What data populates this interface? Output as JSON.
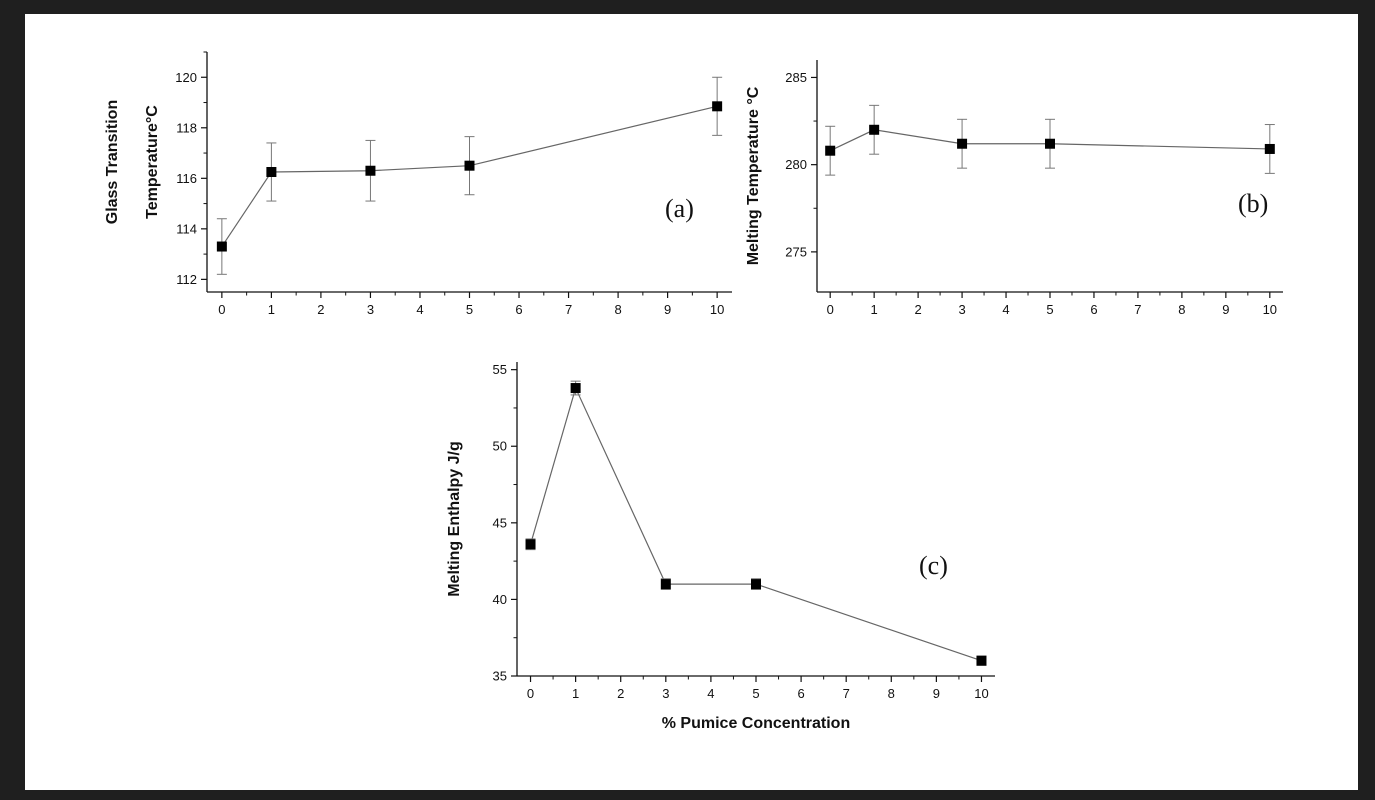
{
  "chart_data": [
    {
      "type": "line",
      "panel_label": "(a)",
      "ylabel": [
        "Glass Transition",
        "Temperature°C"
      ],
      "xlabel": "",
      "xlim": [
        -0.3,
        10.3
      ],
      "ylim": [
        111.5,
        121
      ],
      "xticks": [
        0,
        1,
        2,
        3,
        4,
        5,
        6,
        7,
        8,
        9,
        10
      ],
      "yticks": [
        112,
        114,
        116,
        118,
        120
      ],
      "series": [
        {
          "x": [
            0,
            1,
            3,
            5,
            10
          ],
          "y": [
            113.3,
            116.25,
            116.3,
            116.5,
            118.85
          ],
          "error": [
            1.1,
            1.15,
            1.2,
            1.15,
            1.15
          ]
        }
      ]
    },
    {
      "type": "line",
      "panel_label": "(b)",
      "ylabel": [
        "Melting Temperature °C"
      ],
      "xlabel": "",
      "xlim": [
        -0.3,
        10.3
      ],
      "ylim": [
        272.7,
        286
      ],
      "xticks": [
        0,
        1,
        2,
        3,
        4,
        5,
        6,
        7,
        8,
        9,
        10
      ],
      "yticks": [
        275,
        280,
        285
      ],
      "series": [
        {
          "x": [
            0,
            1,
            3,
            5,
            10
          ],
          "y": [
            280.8,
            282.0,
            281.2,
            281.2,
            280.9
          ],
          "error": [
            1.4,
            1.4,
            1.4,
            1.4,
            1.4
          ]
        }
      ]
    },
    {
      "type": "line",
      "panel_label": "(c)",
      "ylabel": [
        "Melting Enthalpy J/g"
      ],
      "xlabel": "% Pumice Concentration",
      "xlim": [
        -0.3,
        10.3
      ],
      "ylim": [
        35,
        55.5
      ],
      "xticks": [
        0,
        1,
        2,
        3,
        4,
        5,
        6,
        7,
        8,
        9,
        10
      ],
      "yticks": [
        35,
        40,
        45,
        50,
        55
      ],
      "series": [
        {
          "x": [
            0,
            1,
            3,
            5,
            10
          ],
          "y": [
            43.6,
            53.8,
            41.0,
            41.0,
            36.0
          ],
          "error": [
            0.35,
            0.45,
            0.35,
            0.35,
            0.3
          ]
        }
      ]
    }
  ],
  "colors": {
    "ink": "#111111",
    "line": "#666666",
    "marker": "#000000"
  }
}
